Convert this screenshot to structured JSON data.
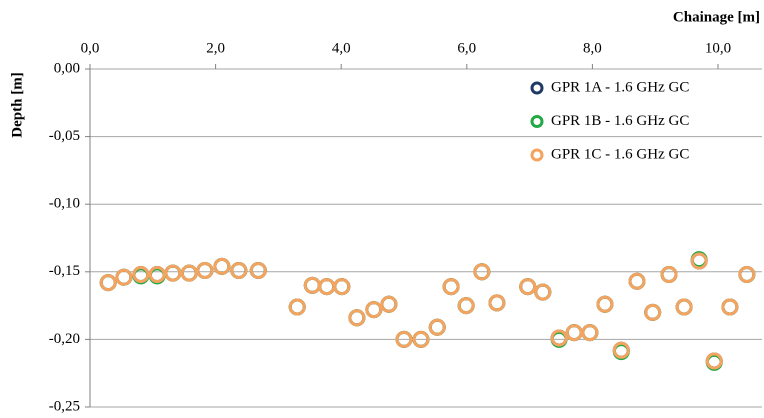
{
  "chart_data": {
    "type": "scatter",
    "xlabel": "Chainage [m]",
    "ylabel": "Depth [m]",
    "xlim": [
      0,
      10.7
    ],
    "ylim": [
      -0.25,
      0
    ],
    "xticks": [
      {
        "value": 0,
        "label": "0,0"
      },
      {
        "value": 2,
        "label": "2,0"
      },
      {
        "value": 4,
        "label": "4,0"
      },
      {
        "value": 6,
        "label": "6,0"
      },
      {
        "value": 8,
        "label": "8,0"
      },
      {
        "value": 10,
        "label": "10,0"
      }
    ],
    "yticks": [
      {
        "value": 0,
        "label": "0,00"
      },
      {
        "value": -0.05,
        "label": "-0,05"
      },
      {
        "value": -0.1,
        "label": "-0,10"
      },
      {
        "value": -0.15,
        "label": "-0,15"
      },
      {
        "value": -0.2,
        "label": "-0,20"
      },
      {
        "value": -0.25,
        "label": "-0,25"
      }
    ],
    "grid": true,
    "legend": "upper right",
    "x": [
      0.29,
      0.54,
      0.81,
      1.07,
      1.32,
      1.58,
      1.83,
      2.1,
      2.37,
      2.68,
      3.3,
      3.54,
      3.77,
      4.01,
      4.25,
      4.52,
      4.76,
      5.0,
      5.27,
      5.53,
      5.75,
      5.99,
      6.24,
      6.48,
      6.97,
      7.21,
      7.47,
      7.71,
      7.96,
      8.2,
      8.46,
      8.71,
      8.96,
      9.22,
      9.46,
      9.7,
      9.94,
      10.19,
      10.46
    ],
    "series": [
      {
        "name": "GPR 1A - 1.6 GHz GC",
        "color": "#1f3864",
        "values": [
          -0.158,
          -0.154,
          -0.152,
          -0.152,
          -0.151,
          -0.151,
          -0.149,
          -0.146,
          -0.149,
          -0.149,
          -0.176,
          -0.16,
          -0.161,
          -0.161,
          -0.184,
          -0.178,
          -0.174,
          -0.2,
          -0.2,
          -0.191,
          -0.161,
          -0.175,
          -0.15,
          -0.173,
          -0.161,
          -0.165,
          -0.199,
          -0.195,
          -0.195,
          -0.174,
          -0.208,
          -0.157,
          -0.18,
          -0.152,
          -0.176,
          -0.142,
          -0.216,
          -0.176,
          -0.152
        ]
      },
      {
        "name": "GPR 1B - 1.6 GHz GC",
        "color": "#22a844",
        "values": [
          -0.158,
          -0.154,
          -0.153,
          -0.153,
          -0.151,
          -0.151,
          -0.149,
          -0.146,
          -0.149,
          -0.149,
          -0.176,
          -0.16,
          -0.161,
          -0.161,
          -0.184,
          -0.178,
          -0.174,
          -0.2,
          -0.2,
          -0.191,
          -0.161,
          -0.175,
          -0.15,
          -0.173,
          -0.161,
          -0.165,
          -0.2,
          -0.195,
          -0.195,
          -0.174,
          -0.209,
          -0.157,
          -0.18,
          -0.152,
          -0.176,
          -0.141,
          -0.217,
          -0.176,
          -0.152
        ]
      },
      {
        "name": "GPR 1C - 1.6 GHz GC",
        "color": "#f4a460",
        "values": [
          -0.158,
          -0.154,
          -0.152,
          -0.152,
          -0.151,
          -0.151,
          -0.149,
          -0.146,
          -0.149,
          -0.149,
          -0.176,
          -0.16,
          -0.161,
          -0.161,
          -0.184,
          -0.178,
          -0.174,
          -0.2,
          -0.2,
          -0.191,
          -0.161,
          -0.175,
          -0.15,
          -0.173,
          -0.161,
          -0.165,
          -0.199,
          -0.195,
          -0.195,
          -0.174,
          -0.208,
          -0.157,
          -0.18,
          -0.152,
          -0.176,
          -0.142,
          -0.216,
          -0.176,
          -0.152
        ]
      }
    ]
  }
}
